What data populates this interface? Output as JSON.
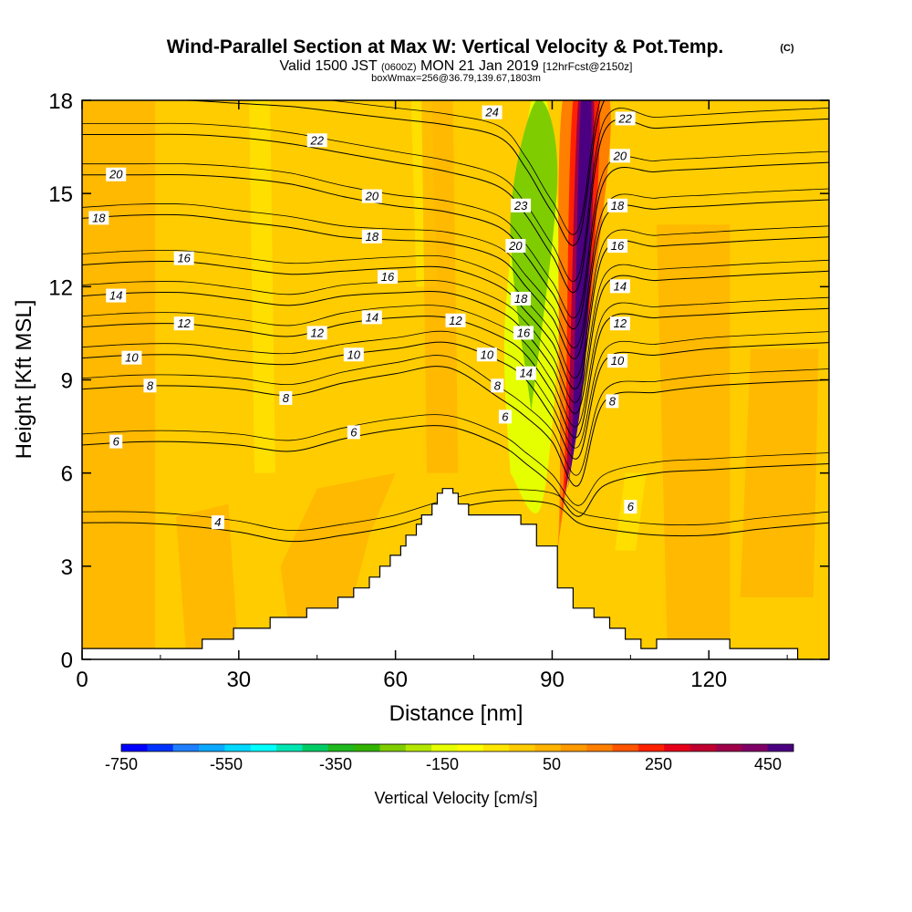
{
  "title": {
    "main": "Wind-Parallel Section at Max W: Vertical Velocity & Pot.Temp.",
    "copyright": "(C)",
    "valid_prefix": "Valid 1500 JST",
    "valid_utc": "(0600Z)",
    "valid_date": "MON 21 Jan 2019",
    "valid_fcst": "[12hrFcst@2150z]",
    "box": "boxWmax=256@36.79,139.67,1803m"
  },
  "chart_data": {
    "type": "heatmap",
    "xlabel": "Distance [nm]",
    "ylabel": "Height [Kft MSL]",
    "xlim": [
      0,
      143
    ],
    "ylim": [
      0,
      18
    ],
    "xticks": [
      0,
      30,
      60,
      90,
      120
    ],
    "yticks": [
      0,
      3,
      6,
      9,
      12,
      15,
      18
    ],
    "colorbar": {
      "label": "Vertical Velocity [cm/s]",
      "tick_labels": [
        -750,
        -550,
        -350,
        -150,
        50,
        250,
        450
      ],
      "colors": [
        "#0000ff",
        "#0033ff",
        "#1f7fff",
        "#0aa8ff",
        "#00d8ff",
        "#00ffff",
        "#00e6b3",
        "#00cc66",
        "#1fb81f",
        "#33b300",
        "#7fcc00",
        "#b3e600",
        "#e6ff00",
        "#ffff00",
        "#ffe600",
        "#ffcc00",
        "#ffb300",
        "#ff9900",
        "#ff7f00",
        "#ff5500",
        "#ff2200",
        "#e6001a",
        "#c00030",
        "#a0004a",
        "#800066",
        "#4b0082"
      ]
    },
    "terrain": {
      "x": [
        0,
        23,
        23,
        29,
        29,
        36,
        36,
        43,
        43,
        49,
        49,
        52,
        52,
        55,
        55,
        57,
        57,
        59,
        59,
        61,
        61,
        62,
        62,
        64,
        64,
        65,
        65,
        67,
        67,
        68,
        68,
        69,
        69,
        71,
        71,
        72,
        72,
        74,
        74,
        84,
        84,
        87,
        87,
        91,
        91,
        94,
        94,
        98,
        98,
        101,
        101,
        104,
        104,
        107,
        107,
        110,
        110,
        124,
        124,
        137,
        137,
        140,
        140,
        143
      ],
      "y": [
        0.35,
        0.35,
        0.65,
        0.65,
        1.0,
        1.0,
        1.35,
        1.35,
        1.65,
        1.65,
        2.0,
        2.0,
        2.3,
        2.3,
        2.65,
        2.65,
        3.0,
        3.0,
        3.35,
        3.35,
        3.65,
        3.65,
        4.0,
        4.0,
        4.35,
        4.35,
        4.65,
        4.65,
        5.0,
        5.0,
        5.35,
        5.35,
        5.5,
        5.5,
        5.35,
        5.35,
        5.0,
        5.0,
        4.65,
        4.65,
        4.35,
        4.35,
        3.65,
        3.65,
        2.3,
        2.3,
        1.65,
        1.65,
        1.35,
        1.35,
        1.0,
        1.0,
        0.65,
        0.65,
        0.35,
        0.35,
        0.65,
        0.65,
        0.35,
        0.35,
        0.0,
        0.0
      ]
    },
    "theta_contours": [
      {
        "label": "4",
        "x": [
          0,
          10,
          20,
          30,
          40,
          50,
          60,
          70,
          80,
          90,
          95,
          100,
          110,
          120,
          130,
          143
        ],
        "y": [
          4.4,
          4.4,
          4.3,
          4.1,
          3.8,
          4.0,
          4.3,
          4.8,
          5.1,
          5.0,
          4.4,
          4.2,
          4.0,
          4.0,
          4.2,
          4.4
        ]
      },
      {
        "label": "6",
        "x": [
          0,
          10,
          20,
          30,
          40,
          50,
          60,
          70,
          80,
          85,
          90,
          95,
          100,
          110,
          120,
          130,
          143
        ],
        "y": [
          6.9,
          7.0,
          7.0,
          6.9,
          6.7,
          7.1,
          7.4,
          7.5,
          6.9,
          6.3,
          5.6,
          4.6,
          5.6,
          6.0,
          6.1,
          6.2,
          6.3
        ]
      },
      {
        "label": "8",
        "x": [
          0,
          10,
          20,
          30,
          40,
          50,
          60,
          70,
          80,
          85,
          90,
          95,
          100,
          110,
          120,
          130,
          143
        ],
        "y": [
          8.7,
          8.8,
          8.8,
          8.7,
          8.5,
          8.9,
          9.2,
          9.4,
          8.4,
          7.8,
          7.0,
          5.6,
          8.3,
          8.6,
          8.8,
          8.9,
          9.0
        ]
      },
      {
        "label": "10",
        "x": [
          0,
          10,
          20,
          30,
          40,
          50,
          60,
          70,
          80,
          85,
          90,
          95,
          100,
          110,
          120,
          130,
          143
        ],
        "y": [
          9.7,
          9.8,
          9.8,
          9.6,
          9.5,
          9.8,
          10.0,
          10.2,
          9.6,
          9.0,
          7.8,
          6.5,
          9.6,
          9.8,
          10.0,
          10.1,
          10.2
        ]
      },
      {
        "label": "12",
        "x": [
          0,
          10,
          20,
          30,
          40,
          50,
          60,
          70,
          80,
          85,
          90,
          95,
          100,
          110,
          120,
          130,
          143
        ],
        "y": [
          10.7,
          10.8,
          10.8,
          10.6,
          10.4,
          10.8,
          11.0,
          11.0,
          10.4,
          9.8,
          8.6,
          7.2,
          10.8,
          11.0,
          11.1,
          11.2,
          11.3
        ]
      },
      {
        "label": "14",
        "x": [
          0,
          10,
          20,
          30,
          40,
          50,
          60,
          70,
          80,
          85,
          90,
          95,
          100,
          110,
          120,
          130,
          143
        ],
        "y": [
          11.7,
          11.8,
          11.8,
          11.6,
          11.4,
          11.7,
          11.8,
          11.8,
          11.2,
          10.5,
          9.4,
          8.0,
          12.0,
          12.2,
          12.3,
          12.4,
          12.5
        ]
      },
      {
        "label": "16",
        "x": [
          0,
          10,
          20,
          30,
          40,
          50,
          60,
          70,
          80,
          85,
          90,
          95,
          100,
          110,
          120,
          130,
          143
        ],
        "y": [
          12.7,
          12.8,
          12.8,
          12.6,
          12.4,
          12.5,
          12.6,
          12.6,
          12.0,
          11.2,
          10.2,
          8.8,
          13.1,
          13.3,
          13.4,
          13.5,
          13.6
        ]
      },
      {
        "label": "18",
        "x": [
          0,
          10,
          20,
          30,
          40,
          50,
          60,
          70,
          80,
          85,
          90,
          95,
          100,
          110,
          120,
          130,
          143
        ],
        "y": [
          14.2,
          14.3,
          14.3,
          14.1,
          13.9,
          13.6,
          13.5,
          13.4,
          12.9,
          12.0,
          11.0,
          9.8,
          14.2,
          14.5,
          14.6,
          14.7,
          14.8
        ]
      },
      {
        "label": "20",
        "x": [
          0,
          10,
          20,
          30,
          40,
          50,
          60,
          70,
          80,
          85,
          90,
          95,
          100,
          110,
          120,
          130,
          143
        ],
        "y": [
          15.6,
          15.6,
          15.6,
          15.5,
          15.3,
          14.9,
          14.6,
          14.4,
          13.9,
          13.0,
          11.8,
          10.8,
          15.4,
          15.7,
          15.8,
          15.9,
          16.0
        ]
      },
      {
        "label": "22",
        "x": [
          0,
          10,
          20,
          30,
          40,
          50,
          60,
          70,
          80,
          85,
          90,
          95,
          100,
          110,
          120,
          130,
          143
        ],
        "y": [
          16.9,
          16.9,
          16.9,
          16.8,
          16.6,
          16.3,
          16.0,
          15.7,
          15.2,
          14.3,
          13.0,
          12.0,
          17.0,
          17.1,
          17.2,
          17.3,
          17.4
        ]
      },
      {
        "label": "24",
        "x": [
          0,
          10,
          20,
          30,
          40,
          50,
          60,
          70,
          80,
          85,
          90,
          95,
          100,
          110,
          120,
          130,
          143
        ],
        "y": [
          18.0,
          18.0,
          18.0,
          17.9,
          17.8,
          17.6,
          17.4,
          17.2,
          16.8,
          15.8,
          14.4,
          13.5,
          18.0,
          18.0,
          18.0,
          18.0,
          18.0
        ]
      }
    ],
    "contour_labels": [
      {
        "text": "20",
        "x": 6.5,
        "y": 15.6
      },
      {
        "text": "18",
        "x": 3.2,
        "y": 14.2
      },
      {
        "text": "16",
        "x": 19.5,
        "y": 12.9
      },
      {
        "text": "14",
        "x": 6.5,
        "y": 11.7
      },
      {
        "text": "12",
        "x": 19.5,
        "y": 10.8
      },
      {
        "text": "10",
        "x": 9.5,
        "y": 9.7
      },
      {
        "text": "8",
        "x": 13,
        "y": 8.8
      },
      {
        "text": "6",
        "x": 6.5,
        "y": 7.0
      },
      {
        "text": "4",
        "x": 26,
        "y": 4.4
      },
      {
        "text": "22",
        "x": 45,
        "y": 16.7
      },
      {
        "text": "20",
        "x": 55.5,
        "y": 14.9
      },
      {
        "text": "18",
        "x": 55.5,
        "y": 13.6
      },
      {
        "text": "16",
        "x": 58.5,
        "y": 12.3
      },
      {
        "text": "14",
        "x": 55.5,
        "y": 11.0
      },
      {
        "text": "12",
        "x": 45,
        "y": 10.5
      },
      {
        "text": "10",
        "x": 52,
        "y": 9.8
      },
      {
        "text": "8",
        "x": 39,
        "y": 8.4
      },
      {
        "text": "6",
        "x": 52,
        "y": 7.3
      },
      {
        "text": "24",
        "x": 78.5,
        "y": 17.6
      },
      {
        "text": "23",
        "x": 84,
        "y": 14.6
      },
      {
        "text": "20",
        "x": 83,
        "y": 13.3
      },
      {
        "text": "18",
        "x": 84,
        "y": 11.6
      },
      {
        "text": "16",
        "x": 84.5,
        "y": 10.5
      },
      {
        "text": "14",
        "x": 85,
        "y": 9.2
      },
      {
        "text": "12",
        "x": 71.5,
        "y": 10.9
      },
      {
        "text": "10",
        "x": 77.5,
        "y": 9.8
      },
      {
        "text": "8",
        "x": 79.5,
        "y": 8.8
      },
      {
        "text": "6",
        "x": 81,
        "y": 7.8
      },
      {
        "text": "22",
        "x": 104,
        "y": 17.4
      },
      {
        "text": "20",
        "x": 103,
        "y": 16.2
      },
      {
        "text": "18",
        "x": 102.5,
        "y": 14.6
      },
      {
        "text": "16",
        "x": 102.5,
        "y": 13.3
      },
      {
        "text": "14",
        "x": 103,
        "y": 12.0
      },
      {
        "text": "12",
        "x": 103,
        "y": 10.8
      },
      {
        "text": "10",
        "x": 102.5,
        "y": 9.6
      },
      {
        "text": "8",
        "x": 101.5,
        "y": 8.3
      },
      {
        "text": "6",
        "x": 105,
        "y": 4.9
      }
    ],
    "velocity_features": [
      {
        "name": "updraft-core",
        "color": "#4b0082",
        "x": [
          93,
          96.5,
          97.5,
          95.5,
          94
        ],
        "y": [
          5.5,
          10,
          18,
          18,
          8
        ]
      },
      {
        "name": "updraft-mid",
        "color": "#a0004a",
        "x": [
          92,
          96.5,
          98,
          95,
          93
        ],
        "y": [
          4.8,
          10,
          18,
          18,
          7
        ]
      },
      {
        "name": "updraft-red",
        "color": "#ff2200",
        "x": [
          91.5,
          97,
          99,
          94,
          92.5
        ],
        "y": [
          4.4,
          11,
          18,
          18,
          7
        ]
      },
      {
        "name": "updraft-orange",
        "color": "#ff7f00",
        "x": [
          91,
          98,
          101,
          92,
          91.5
        ],
        "y": [
          3.5,
          12,
          18,
          18,
          6
        ]
      },
      {
        "name": "downdraft-green",
        "color": "#7fcc00",
        "x": [
          86,
          91,
          87,
          82
        ],
        "y": [
          8,
          15.5,
          18,
          14
        ]
      },
      {
        "name": "downdraft-yellow",
        "color": "#e6ff00",
        "x": [
          82,
          88,
          91.5,
          89,
          86,
          81
        ],
        "y": [
          6,
          5,
          12,
          18,
          18,
          11
        ]
      }
    ]
  }
}
